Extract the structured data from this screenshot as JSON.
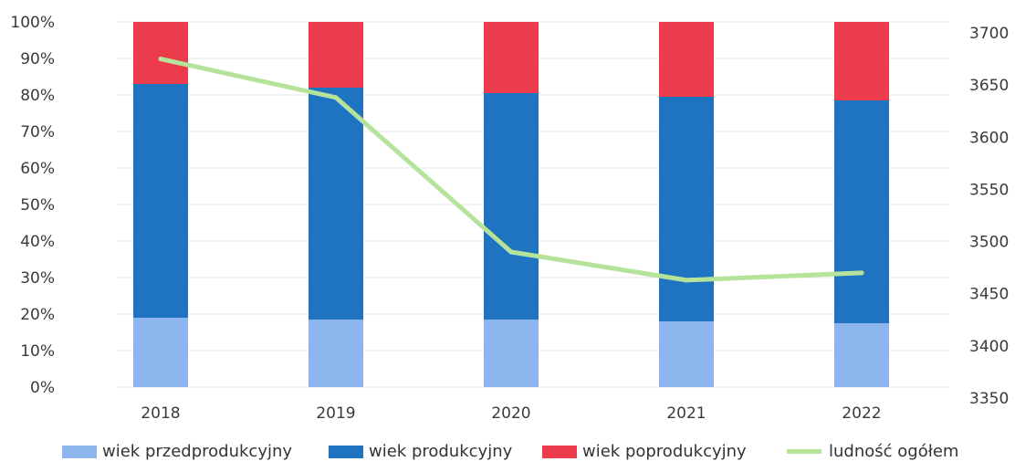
{
  "chart_data": {
    "type": "bar",
    "stacked": true,
    "categories": [
      "2018",
      "2019",
      "2020",
      "2021",
      "2022"
    ],
    "y_left": {
      "ylim": [
        0,
        100
      ],
      "ticks": [
        "0%",
        "10%",
        "20%",
        "30%",
        "40%",
        "50%",
        "60%",
        "70%",
        "80%",
        "90%",
        "100%"
      ]
    },
    "y_right": {
      "ylim": [
        3350,
        3700
      ],
      "ticks": [
        "3350",
        "3400",
        "3450",
        "3500",
        "3550",
        "3600",
        "3650",
        "3700"
      ]
    },
    "series": [
      {
        "name": "wiek przedprodukcyjny",
        "color": "#8db6ef",
        "values": [
          19,
          18.5,
          18.5,
          18,
          17.5
        ]
      },
      {
        "name": "wiek produkcyjny",
        "color": "#1f74c2",
        "values": [
          64,
          63.5,
          62,
          61.5,
          61
        ]
      },
      {
        "name": "wiek poprodukcyjny",
        "color": "#ec3b4a",
        "values": [
          17,
          18,
          19.5,
          20.5,
          21.5
        ]
      }
    ],
    "line_series": {
      "name": "ludność ogółem",
      "color": "#b6e39a",
      "axis": "right",
      "values": [
        3675,
        3638,
        3490,
        3463,
        3470
      ]
    },
    "grid": true,
    "legend_position": "bottom"
  }
}
